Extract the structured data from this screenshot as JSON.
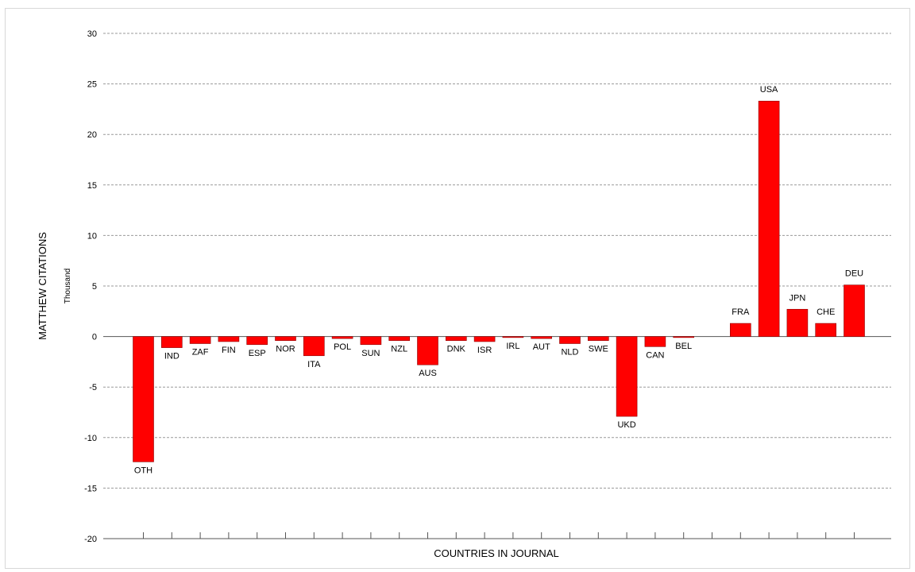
{
  "chart_data": {
    "type": "bar",
    "title": "",
    "xlabel": "COUNTRIES IN JOURNAL",
    "ylabel": "MATTHEW CITATIONS",
    "yunit": "Thousand",
    "ylim": [
      -20,
      30
    ],
    "yticks": [
      30,
      25,
      20,
      15,
      10,
      5,
      0,
      -5,
      -10,
      -15,
      -20
    ],
    "grid": true,
    "bar_color": "#ff0000",
    "categories": [
      "OTH",
      "IND",
      "ZAF",
      "FIN",
      "ESP",
      "NOR",
      "ITA",
      "POL",
      "SUN",
      "NZL",
      "AUS",
      "DNK",
      "ISR",
      "IRL",
      "AUT",
      "NLD",
      "SWE",
      "UKD",
      "CAN",
      "BEL",
      "",
      "FRA",
      "USA",
      "JPN",
      "CHE",
      "DEU"
    ],
    "values": [
      -12.4,
      -1.1,
      -0.7,
      -0.5,
      -0.8,
      -0.4,
      -1.9,
      -0.2,
      -0.8,
      -0.4,
      -2.8,
      -0.4,
      -0.5,
      -0.1,
      -0.2,
      -0.7,
      -0.4,
      -7.9,
      -1.0,
      -0.1,
      null,
      1.3,
      23.3,
      2.7,
      1.3,
      5.1
    ]
  }
}
